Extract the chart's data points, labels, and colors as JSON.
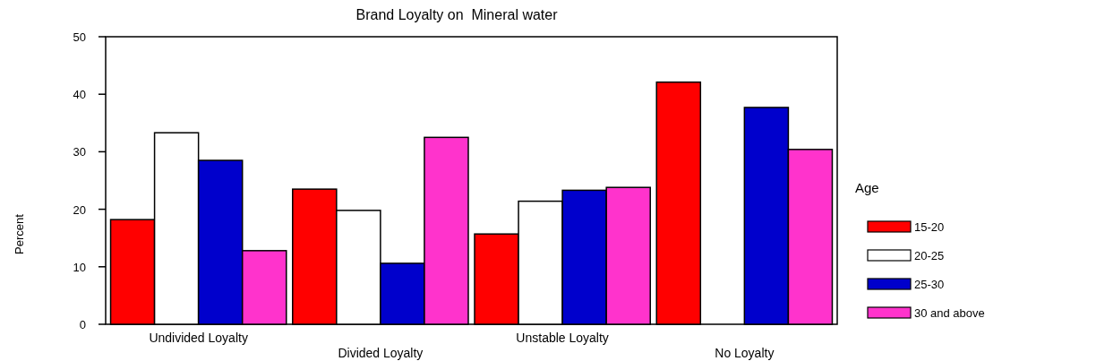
{
  "chart_data": {
    "type": "bar",
    "title": "Brand Loyalty on  Mineral water",
    "ylabel": "Percent",
    "legend_title": "Age",
    "categories": [
      "Undivided Loyalty",
      "Divided Loyalty",
      "Unstable Loyalty",
      "No Loyalty"
    ],
    "ylim": [
      0,
      50
    ],
    "yticks": [
      0,
      10,
      20,
      30,
      40,
      50
    ],
    "legend": "right",
    "grid": false,
    "series": [
      {
        "name": "15-20",
        "color": "#ff0000",
        "values": [
          18.2,
          23.5,
          15.7,
          42.1
        ]
      },
      {
        "name": "20-25",
        "color": "#ffffff",
        "values": [
          33.3,
          19.8,
          21.4,
          null
        ]
      },
      {
        "name": "25-30",
        "color": "#0000cc",
        "values": [
          28.5,
          10.6,
          23.3,
          37.7
        ]
      },
      {
        "name": "30 and above",
        "color": "#ff33cc",
        "values": [
          12.8,
          32.5,
          23.8,
          30.4
        ]
      }
    ]
  }
}
